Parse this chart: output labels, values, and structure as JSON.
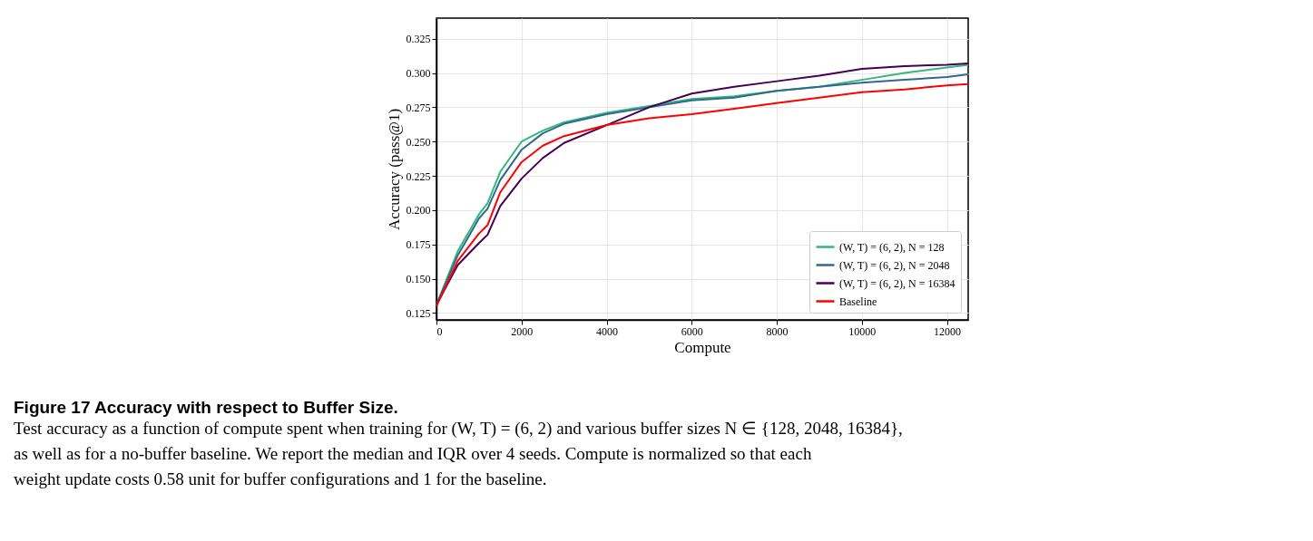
{
  "chart_data": {
    "type": "line",
    "title": "Figure 17  Accuracy with respect to Buffer Size.",
    "annotations": [
      "Test accuracy as a function of compute spent when training for (W, T) = (6, 2) and various buffer sizes N ∈ {128, 2048, 16384},",
      "as well as for a no-buffer baseline. We report the median and IQR over 4 seeds. Compute is normalized so that each",
      "weight update costs 0.58 unit for buffer configurations and 1 for the baseline."
    ],
    "xlabel": "Compute",
    "ylabel": "Accuracy (pass@1)",
    "x": [
      0,
      500,
      1000,
      1200,
      1500,
      2000,
      2500,
      3000,
      4000,
      5000,
      6000,
      7000,
      8000,
      9000,
      10000,
      11000,
      12000,
      12500
    ],
    "series": [
      {
        "name": "(W, T) = (6, 2), N = 128",
        "color": "#35b779",
        "values": [
          0.131,
          0.17,
          0.197,
          0.205,
          0.228,
          0.25,
          0.258,
          0.264,
          0.271,
          0.276,
          0.281,
          0.283,
          0.287,
          0.29,
          0.295,
          0.3,
          0.304,
          0.306
        ]
      },
      {
        "name": "(W, T) = (6, 2), N = 2048",
        "color": "#31688e",
        "values": [
          0.131,
          0.167,
          0.194,
          0.201,
          0.222,
          0.244,
          0.256,
          0.263,
          0.27,
          0.275,
          0.28,
          0.282,
          0.287,
          0.29,
          0.293,
          0.295,
          0.297,
          0.299
        ]
      },
      {
        "name": "(W, T) = (6, 2), N = 16384",
        "color": "#440154",
        "values": [
          0.131,
          0.16,
          0.176,
          0.182,
          0.203,
          0.223,
          0.238,
          0.249,
          0.262,
          0.275,
          0.285,
          0.29,
          0.294,
          0.298,
          0.303,
          0.305,
          0.306,
          0.307
        ]
      },
      {
        "name": "Baseline",
        "color": "#ff0000",
        "values": [
          0.13,
          0.163,
          0.183,
          0.189,
          0.213,
          0.235,
          0.247,
          0.254,
          0.262,
          0.267,
          0.27,
          0.274,
          0.278,
          0.282,
          0.286,
          0.288,
          0.291,
          0.292
        ]
      }
    ],
    "xlim": [
      0,
      12500
    ],
    "xticks": [
      0,
      2000,
      4000,
      6000,
      8000,
      10000,
      12000
    ],
    "ylim": [
      0.12,
      0.34
    ],
    "yticks": [
      0.125,
      {
        "value": 0.15,
        "label": "0.150"
      },
      0.175,
      {
        "value": 0.2,
        "label": "0.200"
      },
      0.225,
      {
        "value": 0.25,
        "label": "0.250"
      },
      0.275,
      {
        "value": 0.3,
        "label": "0.300"
      },
      0.325
    ],
    "grid": true,
    "legend": "bottom right",
    "line_style": "solid"
  }
}
